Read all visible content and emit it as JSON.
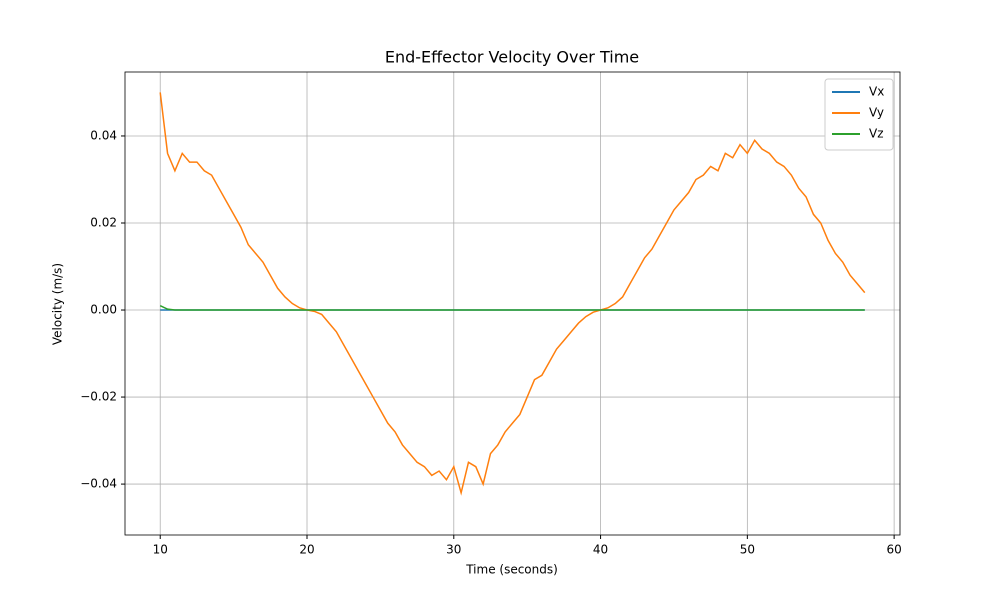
{
  "chart_data": {
    "type": "line",
    "title": "End-Effector Velocity Over Time",
    "x_label": "Time (seconds)",
    "y_label": "Velocity (m/s)",
    "x": [
      10,
      10.5,
      11,
      11.5,
      12,
      12.5,
      13,
      13.5,
      14,
      14.5,
      15,
      15.5,
      16,
      16.5,
      17,
      17.5,
      18,
      18.5,
      19,
      19.5,
      20,
      20.5,
      21,
      21.5,
      22,
      22.5,
      23,
      23.5,
      24,
      24.5,
      25,
      25.5,
      26,
      26.5,
      27,
      27.5,
      28,
      28.5,
      29,
      29.5,
      30,
      30.5,
      31,
      31.5,
      32,
      32.5,
      33,
      33.5,
      34,
      34.5,
      35,
      35.5,
      36,
      36.5,
      37,
      37.5,
      38,
      38.5,
      39,
      39.5,
      40,
      40.5,
      41,
      41.5,
      42,
      42.5,
      43,
      43.5,
      44,
      44.5,
      45,
      45.5,
      46,
      46.5,
      47,
      47.5,
      48,
      48.5,
      49,
      49.5,
      50,
      50.5,
      51,
      51.5,
      52,
      52.5,
      53,
      53.5,
      54,
      54.5,
      55,
      55.5,
      56,
      56.5,
      57,
      57.5,
      58
    ],
    "series": [
      {
        "name": "Vx",
        "color": "#1f77b4",
        "values": [
          0,
          0,
          0,
          0,
          0,
          0,
          0,
          0,
          0,
          0,
          0,
          0,
          0,
          0,
          0,
          0,
          0,
          0,
          0,
          0,
          0,
          0,
          0,
          0,
          0,
          0,
          0,
          0,
          0,
          0,
          0,
          0,
          0,
          0,
          0,
          0,
          0,
          0,
          0,
          0,
          0,
          0,
          0,
          0,
          0,
          0,
          0,
          0,
          0,
          0,
          0,
          0,
          0,
          0,
          0,
          0,
          0,
          0,
          0,
          0,
          0,
          0,
          0,
          0,
          0,
          0,
          0,
          0,
          0,
          0,
          0,
          0,
          0,
          0,
          0,
          0,
          0,
          0,
          0,
          0,
          0,
          0,
          0,
          0,
          0,
          0,
          0,
          0,
          0,
          0,
          0,
          0,
          0,
          0,
          0,
          0,
          0
        ]
      },
      {
        "name": "Vy",
        "color": "#ff7f0e",
        "values": [
          0.05,
          0.036,
          0.032,
          0.036,
          0.034,
          0.034,
          0.032,
          0.031,
          0.028,
          0.025,
          0.022,
          0.019,
          0.015,
          0.013,
          0.011,
          0.008,
          0.005,
          0.003,
          0.0015,
          0.0005,
          0,
          -0.0003,
          -0.001,
          -0.003,
          -0.005,
          -0.008,
          -0.011,
          -0.014,
          -0.017,
          -0.02,
          -0.023,
          -0.026,
          -0.028,
          -0.031,
          -0.033,
          -0.035,
          -0.036,
          -0.038,
          -0.037,
          -0.039,
          -0.036,
          -0.042,
          -0.035,
          -0.036,
          -0.04,
          -0.033,
          -0.031,
          -0.028,
          -0.026,
          -0.024,
          -0.02,
          -0.016,
          -0.015,
          -0.012,
          -0.009,
          -0.007,
          -0.005,
          -0.003,
          -0.0015,
          -0.0005,
          0,
          0.0005,
          0.0015,
          0.003,
          0.006,
          0.009,
          0.012,
          0.014,
          0.017,
          0.02,
          0.023,
          0.025,
          0.027,
          0.03,
          0.031,
          0.033,
          0.032,
          0.036,
          0.035,
          0.038,
          0.036,
          0.039,
          0.037,
          0.036,
          0.034,
          0.033,
          0.031,
          0.028,
          0.026,
          0.022,
          0.02,
          0.016,
          0.013,
          0.011,
          0.008,
          0.006,
          0.004
        ]
      },
      {
        "name": "Vz",
        "color": "#2ca02c",
        "values": [
          0.001,
          0.0002,
          0,
          0,
          0,
          0,
          0,
          0,
          0,
          0,
          0,
          0,
          0,
          0,
          0,
          0,
          0,
          0,
          0,
          0,
          0,
          0,
          0,
          0,
          0,
          0,
          0,
          0,
          0,
          0,
          0,
          0,
          0,
          0,
          0,
          0,
          0,
          0,
          0,
          0,
          0,
          0,
          0,
          0,
          0,
          0,
          0,
          0,
          0,
          0,
          0,
          0,
          0,
          0,
          0,
          0,
          0,
          0,
          0,
          0,
          0,
          0,
          0,
          0,
          0,
          0,
          0,
          0,
          0,
          0,
          0,
          0,
          0,
          0,
          0,
          0,
          0,
          0,
          0,
          0,
          0,
          0,
          0,
          0,
          0,
          0,
          0,
          0,
          0,
          0,
          0,
          0,
          0,
          0,
          0,
          0,
          0
        ]
      }
    ],
    "xlim": [
      7.6,
      60.4
    ],
    "ylim": [
      -0.0517,
      0.0547
    ],
    "xticks": [
      10,
      20,
      30,
      40,
      50,
      60
    ],
    "yticks": [
      {
        "value": -0.04,
        "label": "−0.04"
      },
      {
        "value": -0.02,
        "label": "−0.02"
      },
      {
        "value": 0,
        "label": "0.00"
      },
      0.02,
      0.04
    ],
    "grid": true,
    "legend": "upper right"
  }
}
